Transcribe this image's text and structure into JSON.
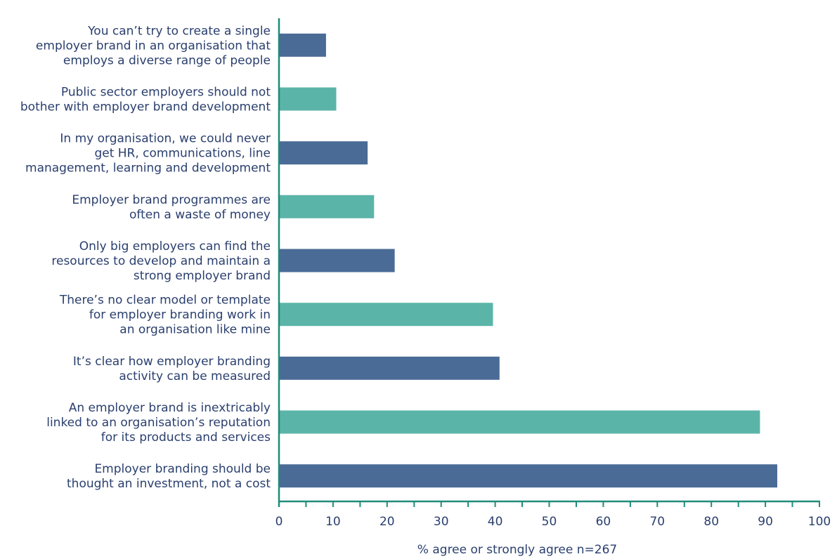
{
  "chart_data": {
    "type": "bar",
    "orientation": "horizontal",
    "categories": [
      [
        "You can’t try to create a single",
        "employer brand in an organisation that",
        "employs a diverse range of people"
      ],
      [
        "Public sector employers should not",
        "bother with employer brand development"
      ],
      [
        "In my organisation, we could never",
        "get HR, communications, line",
        "management, learning and development"
      ],
      [
        "Employer brand programmes are",
        "often a waste of money"
      ],
      [
        "Only big employers can find the",
        "resources to develop and maintain a",
        "strong employer brand"
      ],
      [
        "There’s no clear model or template",
        "for employer branding work in",
        "an organisation like mine"
      ],
      [
        "It’s clear how employer branding",
        "activity can be measured"
      ],
      [
        "An employer brand is inextricably",
        "linked to an organisation’s reputation",
        "for its products and services"
      ],
      [
        "Employer branding should be",
        "thought an investment, not a cost"
      ]
    ],
    "values": [
      8.7,
      10.6,
      16.4,
      17.6,
      21.4,
      39.6,
      40.8,
      89.0,
      92.2
    ],
    "xlabel": "% agree or strongly agree n=267",
    "ylabel": "",
    "xlim": [
      0,
      100
    ],
    "ticks": [
      0,
      10,
      20,
      30,
      40,
      50,
      60,
      70,
      80,
      90,
      100
    ],
    "minor_tick_step": 5,
    "grid": false,
    "colors": {
      "dark": "#4a6b96",
      "teal": "#5ab5a8",
      "axis": "#1f8c7a",
      "text": "#2a3f6e"
    }
  }
}
